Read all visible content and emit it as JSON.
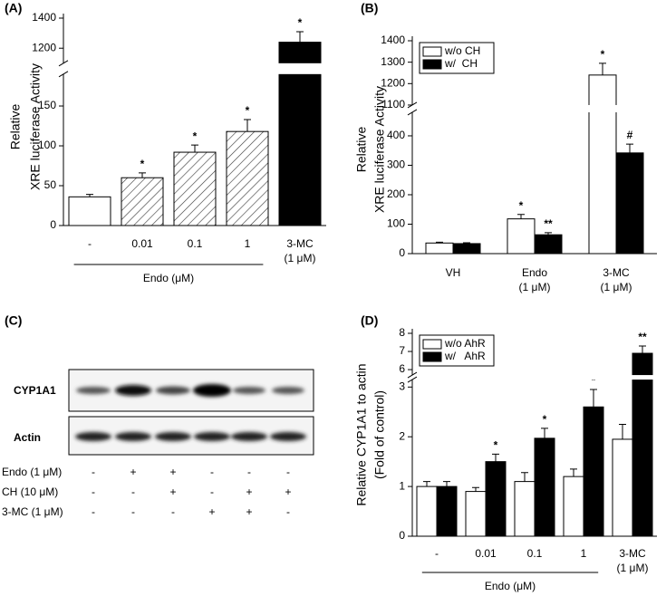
{
  "chart_data": [
    {
      "type": "bar",
      "panel": "(A)",
      "ylabel": [
        "Relative",
        "XRE luciferase Activity"
      ],
      "categories": [
        "-",
        "0.01",
        "0.1",
        "1",
        "3-MC (1 μM)"
      ],
      "group_label": "Endo (μM)",
      "values": [
        36,
        60,
        92,
        118,
        1240
      ],
      "errors": [
        3,
        6,
        9,
        15,
        70
      ],
      "fills": [
        "white",
        "hatch",
        "hatch",
        "hatch",
        "black"
      ],
      "annotations": [
        null,
        "*",
        "*",
        "*",
        "*"
      ],
      "ylim": [
        0,
        1400
      ],
      "ybreak": [
        190,
        1100
      ],
      "yticks": [
        0,
        50,
        100,
        150,
        1200,
        1400
      ]
    },
    {
      "type": "bar",
      "panel": "(B)",
      "ylabel": [
        "Relative",
        "XRE luciferase Activity"
      ],
      "categories": [
        "VH",
        "Endo (1 μM)",
        "3-MC (1 μM)"
      ],
      "series": [
        {
          "name": "w/o CH",
          "color": "white",
          "values": [
            36,
            118,
            1240
          ],
          "errors": [
            3,
            15,
            55
          ],
          "annotations": [
            null,
            "*",
            "*"
          ]
        },
        {
          "name": "w/  CH",
          "color": "black",
          "values": [
            34,
            64,
            342
          ],
          "errors": [
            3,
            7,
            30
          ],
          "annotations": [
            null,
            "**",
            "#"
          ]
        }
      ],
      "legend": "upper left",
      "ylim": [
        0,
        1400
      ],
      "ybreak": [
        480,
        1100
      ],
      "yticks": [
        0,
        100,
        200,
        300,
        400,
        1100,
        1200,
        1300,
        1400
      ]
    },
    {
      "type": "bar",
      "panel": "(D)",
      "ylabel": [
        "Relative CYP1A1 to actin",
        "(Fold of control)"
      ],
      "categories": [
        "-",
        "0.01",
        "0.1",
        "1",
        "3-MC (1 μM)"
      ],
      "group_label": "Endo (μM)",
      "series": [
        {
          "name": "w/o AhR",
          "color": "white",
          "values": [
            1.0,
            0.9,
            1.1,
            1.2,
            1.95
          ],
          "errors": [
            0.1,
            0.08,
            0.18,
            0.15,
            0.3
          ],
          "annotations": [
            null,
            null,
            null,
            null,
            null
          ]
        },
        {
          "name": "w/   AhR",
          "color": "black",
          "values": [
            1.0,
            1.5,
            1.97,
            2.6,
            6.9
          ],
          "errors": [
            0.1,
            0.15,
            0.2,
            0.35,
            0.4
          ],
          "annotations": [
            null,
            "*",
            "*",
            "*",
            "**"
          ]
        }
      ],
      "legend": "upper left",
      "ylim": [
        0,
        8
      ],
      "ybreak": [
        3.15,
        5.7
      ],
      "yticks": [
        0,
        1,
        2,
        3,
        6,
        7,
        8
      ]
    }
  ],
  "blot": {
    "panel": "(C)",
    "bands": [
      "CYP1A1",
      "Actin"
    ],
    "rows": [
      {
        "label": "Endo (1 μM)",
        "signs": [
          "-",
          "+",
          "+",
          "-",
          "-",
          "-"
        ]
      },
      {
        "label": "CH (10 μM)",
        "signs": [
          "-",
          "-",
          "+",
          "-",
          "+",
          "+"
        ]
      },
      {
        "label": "3-MC (1 μM)",
        "signs": [
          "-",
          "-",
          "-",
          "+",
          "+",
          "-"
        ]
      }
    ]
  }
}
